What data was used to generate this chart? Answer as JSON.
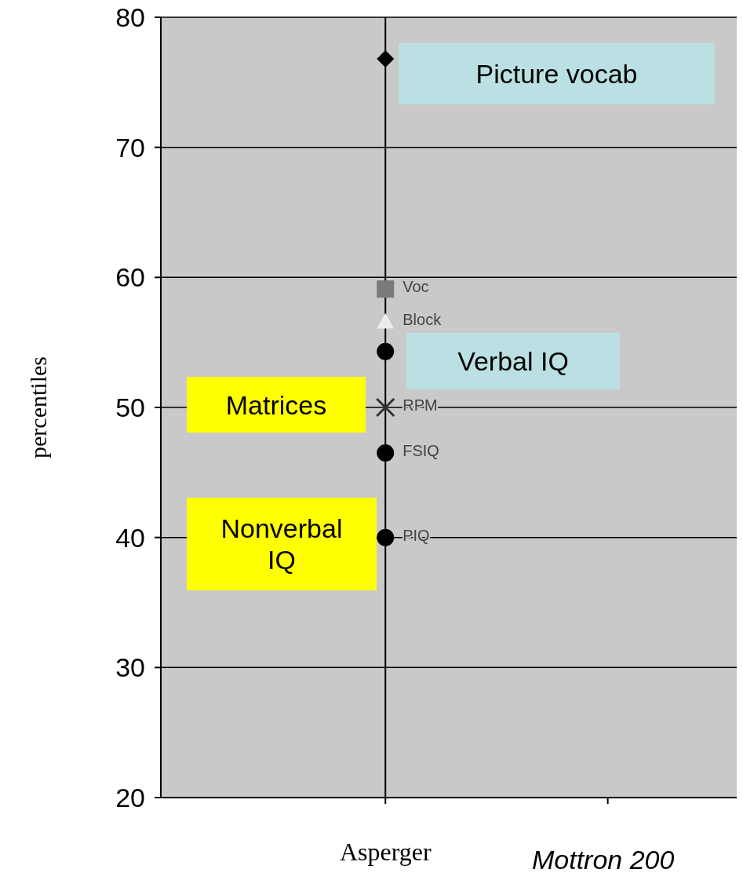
{
  "chart_data": {
    "type": "scatter",
    "ylabel": "percentiles",
    "categories": [
      "Asperger",
      null
    ],
    "ylim": [
      20,
      80
    ],
    "yticks": [
      20,
      30,
      40,
      50,
      60,
      70,
      80
    ],
    "grid": "y",
    "ref_lines": [
      {
        "axis": "x",
        "value": "Asperger",
        "color": "#000000"
      }
    ],
    "series": [
      {
        "color": "#000000",
        "marker": "diamond",
        "values": [
          76.8,
          null
        ]
      },
      {
        "name": "Voc",
        "color": "#7a7a7a",
        "marker": "square",
        "values": [
          59.1,
          null
        ]
      },
      {
        "name": "Block",
        "color": "#ececec",
        "marker": "triangle",
        "values": [
          56.6,
          null
        ]
      },
      {
        "color": "#000000",
        "marker": "circle",
        "values": [
          54.3,
          null
        ]
      },
      {
        "name": "RPM",
        "color": "#333333",
        "marker": "cross",
        "values": [
          50.0,
          null
        ]
      },
      {
        "name": "FSIQ",
        "color": "#000000",
        "marker": "circle",
        "values": [
          46.5,
          null
        ]
      },
      {
        "name": "PIQ",
        "color": "#000000",
        "marker": "circle",
        "values": [
          40.0,
          null
        ]
      }
    ],
    "annotations": [
      "Picture vocab",
      "Verbal IQ",
      "Matrices",
      "Nonverbal IQ",
      "Mottron 200"
    ]
  }
}
